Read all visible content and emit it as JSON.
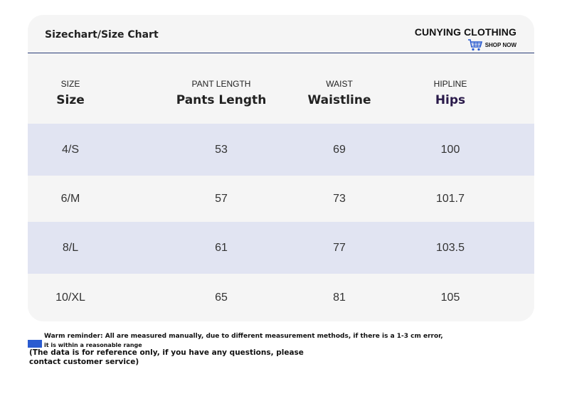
{
  "header": {
    "title": "Sizechart/Size Chart",
    "brand": "CUNYING CLOTHING",
    "shop_now": "SHOP NOW"
  },
  "table": {
    "columns": [
      {
        "small": "SIZE",
        "label": "Size"
      },
      {
        "small": "PANT LENGTH",
        "label": "Pants Length"
      },
      {
        "small": "WAIST",
        "label": "Waistline"
      },
      {
        "small": "HIPLINE",
        "label": "Hips"
      }
    ],
    "rows": [
      [
        "4/S",
        "53",
        "69",
        "100"
      ],
      [
        "6/M",
        "57",
        "73",
        "101.7"
      ],
      [
        "8/L",
        "61",
        "77",
        "103.5"
      ],
      [
        "10/XL",
        "65",
        "81",
        "105"
      ]
    ]
  },
  "note": {
    "line1": "Warm reminder: All are measured manually, due to different measurement methods, if there is a 1-3 cm error,",
    "line2": "it is within a reasonable range",
    "line3": "(The data is for reference only, if you have any questions, please contact customer service)"
  },
  "colors": {
    "accent": "#2a3d78",
    "row_alt": "#e1e4f2",
    "row_plain": "#f5f5f5",
    "swatch": "#2a5bd0"
  },
  "icons": [
    "shopping-cart-icon"
  ]
}
